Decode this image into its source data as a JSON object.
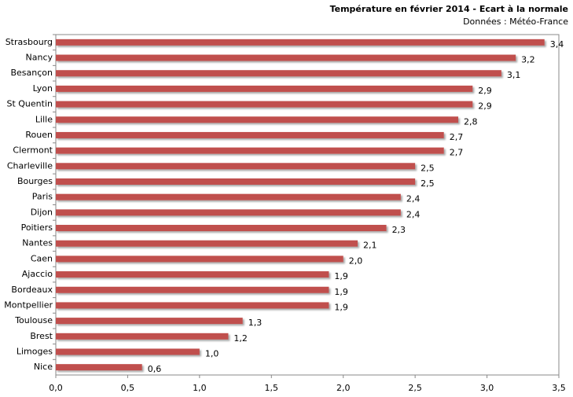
{
  "chart_data": {
    "type": "bar",
    "orientation": "horizontal",
    "title": "Température en février 2014 - Ecart à la normale",
    "subtitle": "Données : Météo-France",
    "categories": [
      "Strasbourg",
      "Nancy",
      "Besançon",
      "Lyon",
      "St Quentin",
      "Lille",
      "Rouen",
      "Clermont",
      "Charleville",
      "Bourges",
      "Paris",
      "Dijon",
      "Poitiers",
      "Nantes",
      "Caen",
      "Ajaccio",
      "Bordeaux",
      "Montpellier",
      "Toulouse",
      "Brest",
      "Limoges",
      "Nice"
    ],
    "values": [
      3.4,
      3.2,
      3.1,
      2.9,
      2.9,
      2.8,
      2.7,
      2.7,
      2.5,
      2.5,
      2.4,
      2.4,
      2.3,
      2.1,
      2.0,
      1.9,
      1.9,
      1.9,
      1.3,
      1.2,
      1.0,
      0.6
    ],
    "value_labels": [
      "3,4",
      "3,2",
      "3,1",
      "2,9",
      "2,9",
      "2,8",
      "2,7",
      "2,7",
      "2,5",
      "2,5",
      "2,4",
      "2,4",
      "2,3",
      "2,1",
      "2,0",
      "1,9",
      "1,9",
      "1,9",
      "1,3",
      "1,2",
      "1,0",
      "0,6"
    ],
    "color": "#c0504d",
    "xlim": [
      0,
      3.5
    ],
    "xticks": [
      {
        "value": 0,
        "label": "0,0"
      },
      {
        "value": 0.5,
        "label": "0,5"
      },
      {
        "value": 1,
        "label": "1,0"
      },
      {
        "value": 1.5,
        "label": "1,5"
      },
      {
        "value": 2,
        "label": "2,0"
      },
      {
        "value": 2.5,
        "label": "2,5"
      },
      {
        "value": 3,
        "label": "3,0"
      },
      {
        "value": 3.5,
        "label": "3,5"
      }
    ],
    "grid": false
  }
}
